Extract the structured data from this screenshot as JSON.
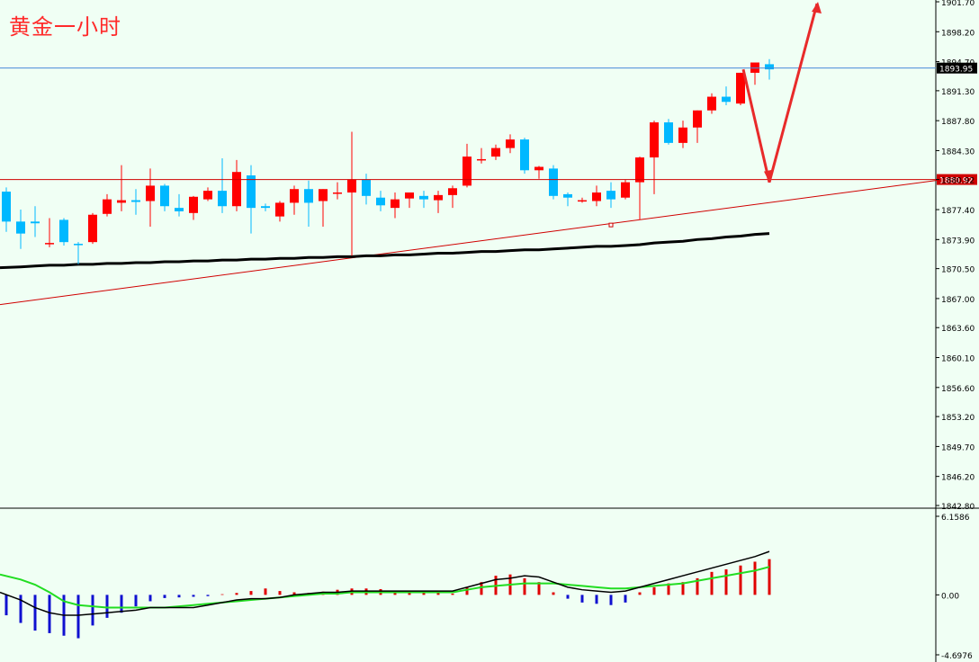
{
  "title": "黄金一小时",
  "colors": {
    "background": "#f0fff4",
    "bull": "#ff0000",
    "bear": "#00b8ff",
    "ma": "#000000",
    "trendline": "#d00000",
    "hline_level": "#d00000",
    "hline_current": "#4a8ad8",
    "arrow": "#e82a2a",
    "hist_pos": "#e00000",
    "hist_neg": "#1010d0",
    "fast_line": "#000000",
    "slow_line": "#22dd22"
  },
  "chart_data": [
    {
      "type": "candlestick",
      "title": "黄金一小时",
      "ylim": [
        1842.8,
        1901.7
      ],
      "y_ticks": [
        "1901.70",
        "1898.20",
        "1894.70",
        "1891.30",
        "1887.80",
        "1884.30",
        "1880.92",
        "1877.40",
        "1873.90",
        "1870.50",
        "1867.00",
        "1863.60",
        "1860.10",
        "1856.60",
        "1853.20",
        "1849.70",
        "1846.20",
        "1842.80"
      ],
      "price_labels": {
        "current": "1893.95",
        "level": "1880.92"
      },
      "level_line": 1880.92,
      "current_line": 1893.95,
      "candles": [
        [
          1879.5,
          1880.0,
          1876.0,
          1874.8
        ],
        [
          1876.0,
          1877.4,
          1874.6,
          1872.8
        ],
        [
          1876.0,
          1877.8,
          1875.8,
          1874.2
        ],
        [
          1873.5,
          1876.4,
          1873.5,
          1873.0
        ],
        [
          1876.2,
          1876.4,
          1873.6,
          1873.2
        ],
        [
          1873.4,
          1873.6,
          1873.3,
          1871.0
        ],
        [
          1873.6,
          1877.0,
          1876.8,
          1873.4
        ],
        [
          1876.9,
          1879.2,
          1878.6,
          1876.6
        ],
        [
          1878.2,
          1882.6,
          1878.5,
          1877.2
        ],
        [
          1878.5,
          1879.8,
          1878.3,
          1876.8
        ],
        [
          1878.4,
          1882.2,
          1880.2,
          1875.4
        ],
        [
          1880.2,
          1880.4,
          1877.8,
          1877.2
        ],
        [
          1877.6,
          1879.2,
          1877.2,
          1876.6
        ],
        [
          1877.0,
          1879.0,
          1878.9,
          1876.2
        ],
        [
          1878.6,
          1880.0,
          1879.6,
          1878.4
        ],
        [
          1879.6,
          1883.4,
          1877.8,
          1877.0
        ],
        [
          1877.8,
          1883.2,
          1881.8,
          1877.2
        ],
        [
          1881.4,
          1882.6,
          1877.6,
          1874.6
        ],
        [
          1877.8,
          1878.1,
          1877.6,
          1877.2
        ],
        [
          1876.6,
          1878.4,
          1878.2,
          1876.0
        ],
        [
          1878.2,
          1880.2,
          1879.8,
          1876.8
        ],
        [
          1879.8,
          1880.8,
          1878.2,
          1875.4
        ],
        [
          1878.4,
          1879.8,
          1879.8,
          1875.4
        ],
        [
          1879.4,
          1880.6,
          1879.4,
          1878.6
        ],
        [
          1879.4,
          1886.5,
          1880.9,
          1872.0
        ],
        [
          1880.9,
          1881.6,
          1879.0,
          1878.0
        ],
        [
          1878.8,
          1879.6,
          1877.9,
          1877.2
        ],
        [
          1877.6,
          1879.4,
          1878.6,
          1876.4
        ],
        [
          1878.7,
          1879.4,
          1879.4,
          1877.6
        ],
        [
          1879.0,
          1879.6,
          1878.6,
          1877.6
        ],
        [
          1878.5,
          1879.6,
          1879.1,
          1877.0
        ],
        [
          1879.1,
          1880.2,
          1879.9,
          1877.6
        ],
        [
          1880.2,
          1885.1,
          1883.6,
          1880.0
        ],
        [
          1883.2,
          1884.6,
          1883.3,
          1882.8
        ],
        [
          1883.6,
          1885.0,
          1884.6,
          1883.2
        ],
        [
          1884.6,
          1886.2,
          1885.6,
          1884.0
        ],
        [
          1885.6,
          1885.8,
          1882.0,
          1881.6
        ],
        [
          1882.0,
          1882.5,
          1882.4,
          1881.0
        ],
        [
          1882.2,
          1882.6,
          1879.0,
          1878.6
        ],
        [
          1879.2,
          1879.4,
          1878.8,
          1877.8
        ],
        [
          1878.4,
          1878.8,
          1878.5,
          1878.2
        ],
        [
          1878.4,
          1880.2,
          1879.4,
          1877.8
        ],
        [
          1879.6,
          1880.6,
          1878.6,
          1877.6
        ],
        [
          1878.8,
          1880.9,
          1880.6,
          1878.6
        ],
        [
          1880.6,
          1883.6,
          1883.5,
          1876.2
        ],
        [
          1883.5,
          1887.8,
          1887.6,
          1879.2
        ],
        [
          1887.6,
          1888.0,
          1885.2,
          1885.0
        ],
        [
          1885.2,
          1887.8,
          1887.0,
          1884.6
        ],
        [
          1887.0,
          1889.0,
          1889.0,
          1885.2
        ],
        [
          1889.0,
          1891.0,
          1890.6,
          1888.6
        ],
        [
          1890.6,
          1891.8,
          1890.0,
          1889.6
        ],
        [
          1889.8,
          1893.4,
          1893.4,
          1889.6
        ],
        [
          1893.4,
          1894.6,
          1894.6,
          1892.0
        ],
        [
          1894.4,
          1895.0,
          1893.8,
          1892.6
        ]
      ],
      "moving_average": [
        1870.6,
        1870.7,
        1870.8,
        1870.9,
        1870.9,
        1871.0,
        1871.0,
        1871.1,
        1871.1,
        1871.2,
        1871.2,
        1871.3,
        1871.3,
        1871.4,
        1871.4,
        1871.5,
        1871.5,
        1871.6,
        1871.6,
        1871.7,
        1871.7,
        1871.8,
        1871.8,
        1871.9,
        1871.9,
        1872.0,
        1872.0,
        1872.1,
        1872.1,
        1872.2,
        1872.3,
        1872.3,
        1872.4,
        1872.5,
        1872.5,
        1872.6,
        1872.7,
        1872.7,
        1872.8,
        1872.9,
        1873.0,
        1873.1,
        1873.1,
        1873.2,
        1873.3,
        1873.5,
        1873.6,
        1873.7,
        1873.9,
        1874.0,
        1874.2,
        1874.3,
        1874.5,
        1874.6
      ],
      "trendline": {
        "from": [
          0,
          1866.3
        ],
        "to": [
          65,
          1880.9
        ]
      },
      "marker_low": 1875.6,
      "arrow_path": [
        1893.8,
        1880.6,
        1902.8
      ]
    },
    {
      "type": "oscillator",
      "ylim": [
        -4.6976,
        6.1586
      ],
      "y_ticks": [
        "6.1586",
        "0.00",
        "-4.6976"
      ],
      "histogram": [
        -1.6,
        -2.2,
        -2.8,
        -3.0,
        -3.2,
        -3.4,
        -2.4,
        -1.8,
        -1.4,
        -0.9,
        -0.5,
        -0.25,
        -0.2,
        -0.15,
        -0.1,
        0.05,
        0.15,
        0.3,
        0.5,
        0.3,
        0.2,
        0.15,
        0.25,
        0.4,
        0.5,
        0.5,
        0.45,
        0.3,
        0.2,
        0.15,
        0.15,
        0.1,
        0.6,
        1.0,
        1.5,
        1.6,
        1.3,
        1.0,
        0.2,
        -0.3,
        -0.6,
        -0.7,
        -0.8,
        -0.6,
        0.2,
        0.6,
        0.9,
        1.0,
        1.3,
        1.8,
        2.0,
        2.3,
        2.6,
        2.8
      ],
      "fast_line": [
        0.2,
        -0.4,
        -1.0,
        -1.4,
        -1.6,
        -1.6,
        -1.5,
        -1.4,
        -1.3,
        -1.2,
        -1.0,
        -1.0,
        -1.0,
        -1.0,
        -0.8,
        -0.6,
        -0.4,
        -0.3,
        -0.3,
        -0.2,
        0.0,
        0.1,
        0.2,
        0.2,
        0.3,
        0.3,
        0.3,
        0.3,
        0.3,
        0.3,
        0.3,
        0.3,
        0.6,
        0.9,
        1.2,
        1.3,
        1.5,
        1.4,
        1.0,
        0.6,
        0.4,
        0.3,
        0.2,
        0.3,
        0.6,
        0.9,
        1.2,
        1.5,
        1.8,
        2.1,
        2.4,
        2.7,
        3.0,
        3.4
      ],
      "slow_line": [
        1.6,
        1.2,
        0.8,
        0.2,
        -0.5,
        -0.8,
        -0.9,
        -1.0,
        -1.0,
        -1.0,
        -1.0,
        -1.0,
        -0.9,
        -0.8,
        -0.7,
        -0.6,
        -0.5,
        -0.4,
        -0.3,
        -0.2,
        -0.1,
        0.0,
        0.1,
        0.1,
        0.2,
        0.2,
        0.2,
        0.2,
        0.2,
        0.2,
        0.2,
        0.2,
        0.4,
        0.6,
        0.7,
        0.8,
        0.9,
        0.9,
        0.9,
        0.8,
        0.7,
        0.6,
        0.5,
        0.5,
        0.6,
        0.7,
        0.8,
        0.9,
        1.1,
        1.3,
        1.5,
        1.7,
        1.9,
        2.2
      ]
    }
  ]
}
